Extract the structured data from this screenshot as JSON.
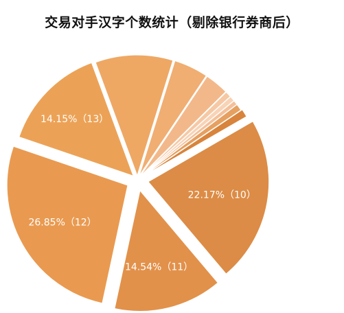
{
  "chart_data": {
    "type": "pie",
    "title": "交易对手汉字个数统计（剔除银行券商后）",
    "slices": [
      {
        "category": "10",
        "value": 22.17,
        "label": "22.17%（10）",
        "color": "#dc8c46"
      },
      {
        "category": "11",
        "value": 14.54,
        "label": "14.54%（11）",
        "color": "#e2914a"
      },
      {
        "category": "12",
        "value": 26.85,
        "label": "26.85%（12）",
        "color": "#e99a50"
      },
      {
        "category": "13",
        "value": 14.15,
        "label": "14.15%（13）",
        "color": "#eca256"
      },
      {
        "category": "",
        "value": 10.4,
        "label": "",
        "color": "#eea864"
      },
      {
        "category": "",
        "value": 4.6,
        "label": "",
        "color": "#f0ae72"
      },
      {
        "category": "",
        "value": 3.2,
        "label": "",
        "color": "#f3b88a"
      },
      {
        "category": "",
        "value": 0.8,
        "label": "",
        "color": "#f6c8a4"
      },
      {
        "category": "",
        "value": 0.7,
        "label": "",
        "color": "#f8d3b5"
      },
      {
        "category": "",
        "value": 0.6,
        "label": "",
        "color": "#f4c09a"
      },
      {
        "category": "",
        "value": 0.9,
        "label": "",
        "color": "#e6a060"
      },
      {
        "category": "",
        "value": 1.08,
        "label": "",
        "color": "#d8843c"
      }
    ]
  }
}
